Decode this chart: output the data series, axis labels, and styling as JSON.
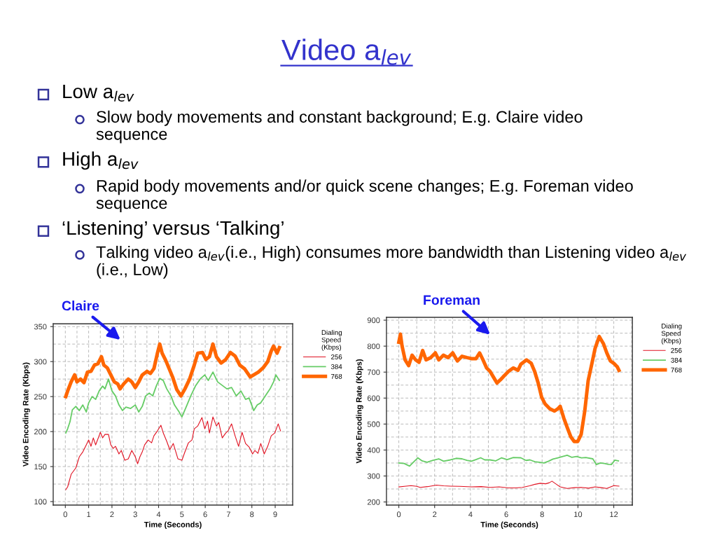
{
  "chart_data": [
    {
      "type": "other",
      "title": "Video a$_{lev}$",
      "annotations": [
        "Low a$_{lev}$",
        "Slow body movements and constant background; E.g. Claire video\nsequence",
        "High a$_{lev}$",
        "Rapid body movements and/or quick scene changes; E.g. Foreman video\nsequence",
        "‘Listening’ versus ‘Talking’",
        "Talking video a$_{lev}$(i.e., High) consumes more bandwidth than Listening video a$_{lev}$\n(i.e., Low)"
      ]
    },
    {
      "type": "line",
      "title": "Claire",
      "xlabel": "Time (Seconds)",
      "ylabel": "Video Encoding Rate (Kbps)",
      "legend_title": "Dialing\nSpeed\n(Kbps)",
      "legend": "right",
      "grid": true,
      "xlim": [
        -0.52,
        9.75
      ],
      "ylim": [
        95,
        354
      ],
      "xticks": [
        0,
        {
          "value": 0.5,
          "label": null
        },
        1,
        {
          "value": 1.5,
          "label": null
        },
        2,
        {
          "value": 2.5,
          "label": null
        },
        3,
        {
          "value": 3.5,
          "label": null
        },
        4,
        {
          "value": 4.5,
          "label": null
        },
        5,
        {
          "value": 5.5,
          "label": null
        },
        6,
        {
          "value": 6.5,
          "label": null
        },
        7,
        {
          "value": 7.5,
          "label": null
        },
        8,
        {
          "value": 8.5,
          "label": null
        },
        9,
        {
          "value": 9.5,
          "label": null
        }
      ],
      "yticks": [
        100,
        {
          "value": 125,
          "label": null
        },
        150,
        {
          "value": 175,
          "label": null
        },
        200,
        {
          "value": 225,
          "label": null
        },
        250,
        {
          "value": 275,
          "label": null
        },
        300,
        {
          "value": 325,
          "label": null
        },
        350
      ],
      "series": [
        {
          "name": "256",
          "color": "#e01020",
          "x": [
            0.02,
            0.1,
            0.25,
            0.45,
            0.6,
            0.75,
            0.9,
            1.0,
            1.1,
            1.2,
            1.3,
            1.45,
            1.5,
            1.6,
            1.7,
            1.85,
            1.95,
            2.05,
            2.15,
            2.3,
            2.4,
            2.55,
            2.7,
            2.85,
            3.0,
            3.1,
            3.2,
            3.3,
            3.4,
            3.55,
            3.7,
            3.8,
            3.95,
            4.1,
            4.2,
            4.35,
            4.48,
            4.63,
            4.83,
            5.0,
            5.13,
            5.28,
            5.43,
            5.53,
            5.68,
            5.86,
            5.98,
            6.1,
            6.18,
            6.33,
            6.48,
            6.58,
            6.73,
            6.88,
            6.98,
            7.13,
            7.28,
            7.43,
            7.58,
            7.73,
            7.88,
            8.03,
            8.13,
            8.26,
            8.38,
            8.53,
            8.68,
            8.83,
            8.98,
            9.13,
            9.23
          ],
          "values": [
            117,
            121,
            139,
            148,
            164,
            171,
            181,
            188,
            179,
            191,
            181,
            194,
            199,
            191,
            196,
            196,
            181,
            176,
            179,
            168,
            173,
            159,
            161,
            173,
            164,
            154,
            164,
            171,
            181,
            188,
            184,
            194,
            201,
            209,
            198,
            186,
            174,
            183,
            161,
            159,
            171,
            184,
            188,
            204,
            208,
            220,
            204,
            215,
            198,
            221,
            208,
            213,
            191,
            198,
            201,
            211,
            194,
            179,
            199,
            183,
            178,
            168,
            173,
            169,
            183,
            168,
            179,
            194,
            198,
            211,
            201
          ]
        },
        {
          "name": "384",
          "color": "#66cc66",
          "x": [
            0.02,
            0.1,
            0.2,
            0.3,
            0.45,
            0.6,
            0.75,
            0.9,
            1.0,
            1.15,
            1.3,
            1.45,
            1.6,
            1.7,
            1.85,
            2.0,
            2.15,
            2.3,
            2.45,
            2.6,
            2.8,
            3.0,
            3.15,
            3.3,
            3.45,
            3.6,
            3.75,
            3.9,
            4.05,
            4.2,
            4.35,
            4.53,
            4.68,
            4.88,
            5.0,
            5.18,
            5.38,
            5.58,
            5.78,
            5.98,
            6.13,
            6.33,
            6.53,
            6.73,
            6.93,
            7.13,
            7.33,
            7.53,
            7.73,
            7.88,
            8.08,
            8.23,
            8.38,
            8.58,
            8.78,
            8.93,
            9.03,
            9.18
          ],
          "values": [
            198,
            204,
            214,
            231,
            236,
            230,
            238,
            228,
            241,
            250,
            246,
            258,
            265,
            261,
            275,
            258,
            251,
            238,
            230,
            235,
            233,
            238,
            228,
            236,
            251,
            255,
            251,
            265,
            276,
            273,
            261,
            251,
            238,
            228,
            221,
            235,
            251,
            265,
            275,
            281,
            273,
            285,
            271,
            266,
            261,
            263,
            251,
            258,
            246,
            248,
            230,
            238,
            241,
            251,
            261,
            271,
            281,
            273
          ]
        },
        {
          "name": "768",
          "color": "#ff6600",
          "x": [
            0.02,
            0.1,
            0.25,
            0.4,
            0.5,
            0.65,
            0.8,
            0.95,
            1.1,
            1.25,
            1.4,
            1.55,
            1.65,
            1.8,
            1.95,
            2.1,
            2.25,
            2.35,
            2.5,
            2.7,
            2.85,
            3.0,
            3.15,
            3.3,
            3.5,
            3.65,
            3.8,
            3.95,
            4.05,
            4.15,
            4.3,
            4.45,
            4.6,
            4.78,
            4.96,
            5.13,
            5.33,
            5.53,
            5.68,
            5.88,
            6.03,
            6.18,
            6.33,
            6.48,
            6.68,
            6.88,
            7.08,
            7.28,
            7.48,
            7.68,
            7.93,
            8.08,
            8.28,
            8.48,
            8.68,
            8.83,
            8.93,
            9.08,
            9.18
          ],
          "values": [
            250,
            258,
            271,
            281,
            271,
            275,
            270,
            285,
            286,
            295,
            297,
            307,
            295,
            291,
            281,
            271,
            268,
            261,
            268,
            275,
            271,
            263,
            271,
            281,
            286,
            283,
            290,
            312,
            325,
            312,
            302,
            290,
            278,
            260,
            251,
            261,
            275,
            295,
            312,
            313,
            303,
            307,
            325,
            307,
            298,
            303,
            313,
            308,
            295,
            290,
            278,
            281,
            285,
            291,
            300,
            315,
            322,
            312,
            320
          ]
        }
      ]
    },
    {
      "type": "line",
      "title": "Foreman",
      "xlabel": "Time (Seconds)",
      "ylabel": "Video Encoding Rate (Kbps)",
      "legend_title": "Dialing\nSpeed\n(Kbps)",
      "legend": "right",
      "grid": true,
      "xlim": [
        -0.69,
        13.04
      ],
      "ylim": [
        188,
        911
      ],
      "xticks": [
        0,
        {
          "value": 1,
          "label": null
        },
        2,
        {
          "value": 3,
          "label": null
        },
        4,
        {
          "value": 5,
          "label": null
        },
        6,
        {
          "value": 7,
          "label": null
        },
        8,
        {
          "value": 9,
          "label": null
        },
        10,
        {
          "value": 11,
          "label": null
        },
        12,
        {
          "value": 13,
          "label": null
        }
      ],
      "yticks": [
        200,
        {
          "value": 250,
          "label": null
        },
        300,
        {
          "value": 350,
          "label": null
        },
        400,
        {
          "value": 450,
          "label": null
        },
        500,
        {
          "value": 550,
          "label": null
        },
        600,
        {
          "value": 650,
          "label": null
        },
        700,
        {
          "value": 750,
          "label": null
        },
        800,
        {
          "value": 850,
          "label": null
        },
        900
      ],
      "series": [
        {
          "name": "256",
          "color": "#e01020",
          "x": [
            0.0,
            0.4,
            0.68,
            1.0,
            1.19,
            1.6,
            2.1,
            2.5,
            2.88,
            3.4,
            4.05,
            4.6,
            5.09,
            5.6,
            6.13,
            6.5,
            6.9,
            7.3,
            7.6,
            7.9,
            8.2,
            8.4,
            8.55,
            8.8,
            9.01,
            9.4,
            9.8,
            10.18,
            10.6,
            10.96,
            11.3,
            11.61,
            12.0,
            12.29
          ],
          "values": [
            258,
            261,
            263,
            260,
            256,
            259,
            265,
            262,
            261,
            260,
            258,
            259,
            256,
            258,
            254,
            254,
            256,
            262,
            268,
            272,
            270,
            274,
            280,
            268,
            258,
            252,
            255,
            256,
            253,
            258,
            255,
            252,
            263,
            261
          ]
        },
        {
          "name": "384",
          "color": "#66cc66",
          "x": [
            0.0,
            0.3,
            0.6,
            0.8,
            1.06,
            1.3,
            1.58,
            1.9,
            2.23,
            2.5,
            2.88,
            3.2,
            3.53,
            3.8,
            4.05,
            4.3,
            4.57,
            4.8,
            5.09,
            5.4,
            5.74,
            6.05,
            6.39,
            6.81,
            7.1,
            7.32,
            7.6,
            7.84,
            8.1,
            8.36,
            8.6,
            8.88,
            9.15,
            9.4,
            9.65,
            9.92,
            10.2,
            10.44,
            10.83,
            11.03,
            11.25,
            11.48,
            11.7,
            11.87,
            12.06,
            12.26
          ],
          "values": [
            350,
            348,
            338,
            352,
            370,
            358,
            353,
            360,
            366,
            357,
            362,
            368,
            366,
            360,
            357,
            363,
            370,
            362,
            362,
            358,
            370,
            363,
            371,
            370,
            360,
            362,
            355,
            353,
            350,
            357,
            365,
            370,
            375,
            380,
            372,
            375,
            370,
            371,
            366,
            344,
            350,
            348,
            345,
            344,
            361,
            358
          ]
        },
        {
          "name": "768",
          "color": "#ff6600",
          "x": [
            0.0,
            0.09,
            0.18,
            0.35,
            0.55,
            0.74,
            0.94,
            1.13,
            1.33,
            1.52,
            1.78,
            2.04,
            2.23,
            2.49,
            2.75,
            3.01,
            3.27,
            3.53,
            3.79,
            4.05,
            4.31,
            4.51,
            4.7,
            4.9,
            5.09,
            5.29,
            5.48,
            5.68,
            5.87,
            6.13,
            6.39,
            6.65,
            6.81,
            7.13,
            7.39,
            7.58,
            7.78,
            7.97,
            8.17,
            8.43,
            8.69,
            8.88,
            9.01,
            9.21,
            9.4,
            9.6,
            9.79,
            9.99,
            10.18,
            10.38,
            10.57,
            10.77,
            10.96,
            11.19,
            11.42,
            11.61,
            11.81,
            12.0,
            12.19,
            12.29
          ],
          "values": [
            815,
            846,
            801,
            747,
            725,
            765,
            747,
            738,
            783,
            747,
            756,
            774,
            747,
            765,
            756,
            774,
            743,
            761,
            756,
            752,
            752,
            774,
            747,
            716,
            703,
            680,
            658,
            671,
            685,
            703,
            716,
            707,
            730,
            747,
            734,
            703,
            658,
            604,
            577,
            559,
            550,
            559,
            568,
            523,
            487,
            451,
            433,
            433,
            460,
            550,
            667,
            730,
            792,
            837,
            810,
            774,
            743,
            734,
            721,
            707
          ]
        }
      ]
    }
  ]
}
